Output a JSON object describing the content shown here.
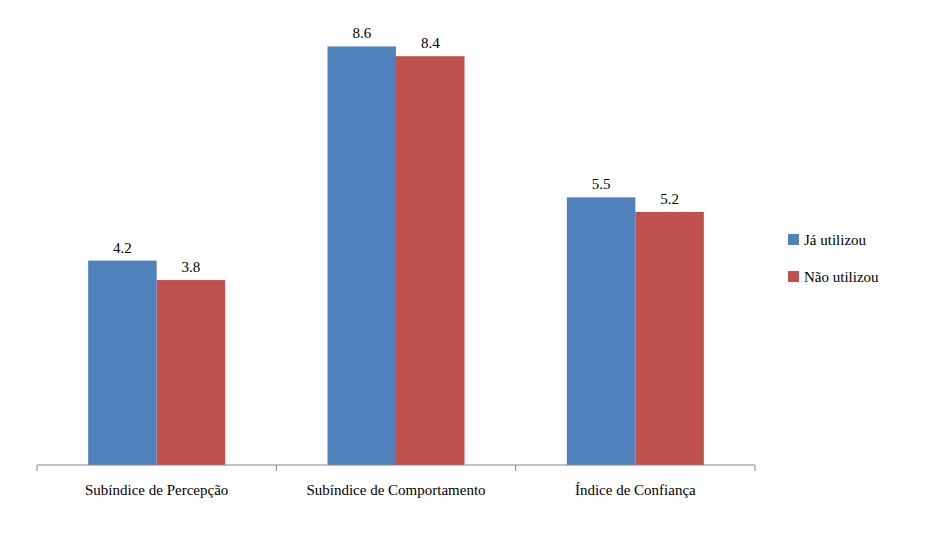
{
  "chart_data": {
    "type": "bar",
    "categories": [
      "Subíndice de Percepção",
      "Subíndice de Comportamento",
      "Índice de Confiança"
    ],
    "series": [
      {
        "name": "Já utilizou",
        "color": "#4f81bd",
        "values": [
          4.2,
          8.6,
          5.5
        ]
      },
      {
        "name": "Não utilizou",
        "color": "#c0504d",
        "values": [
          3.8,
          8.4,
          5.2
        ]
      }
    ],
    "ylim": [
      0,
      9
    ],
    "data_labels": true,
    "tick_labels": "x",
    "legend": "right"
  }
}
